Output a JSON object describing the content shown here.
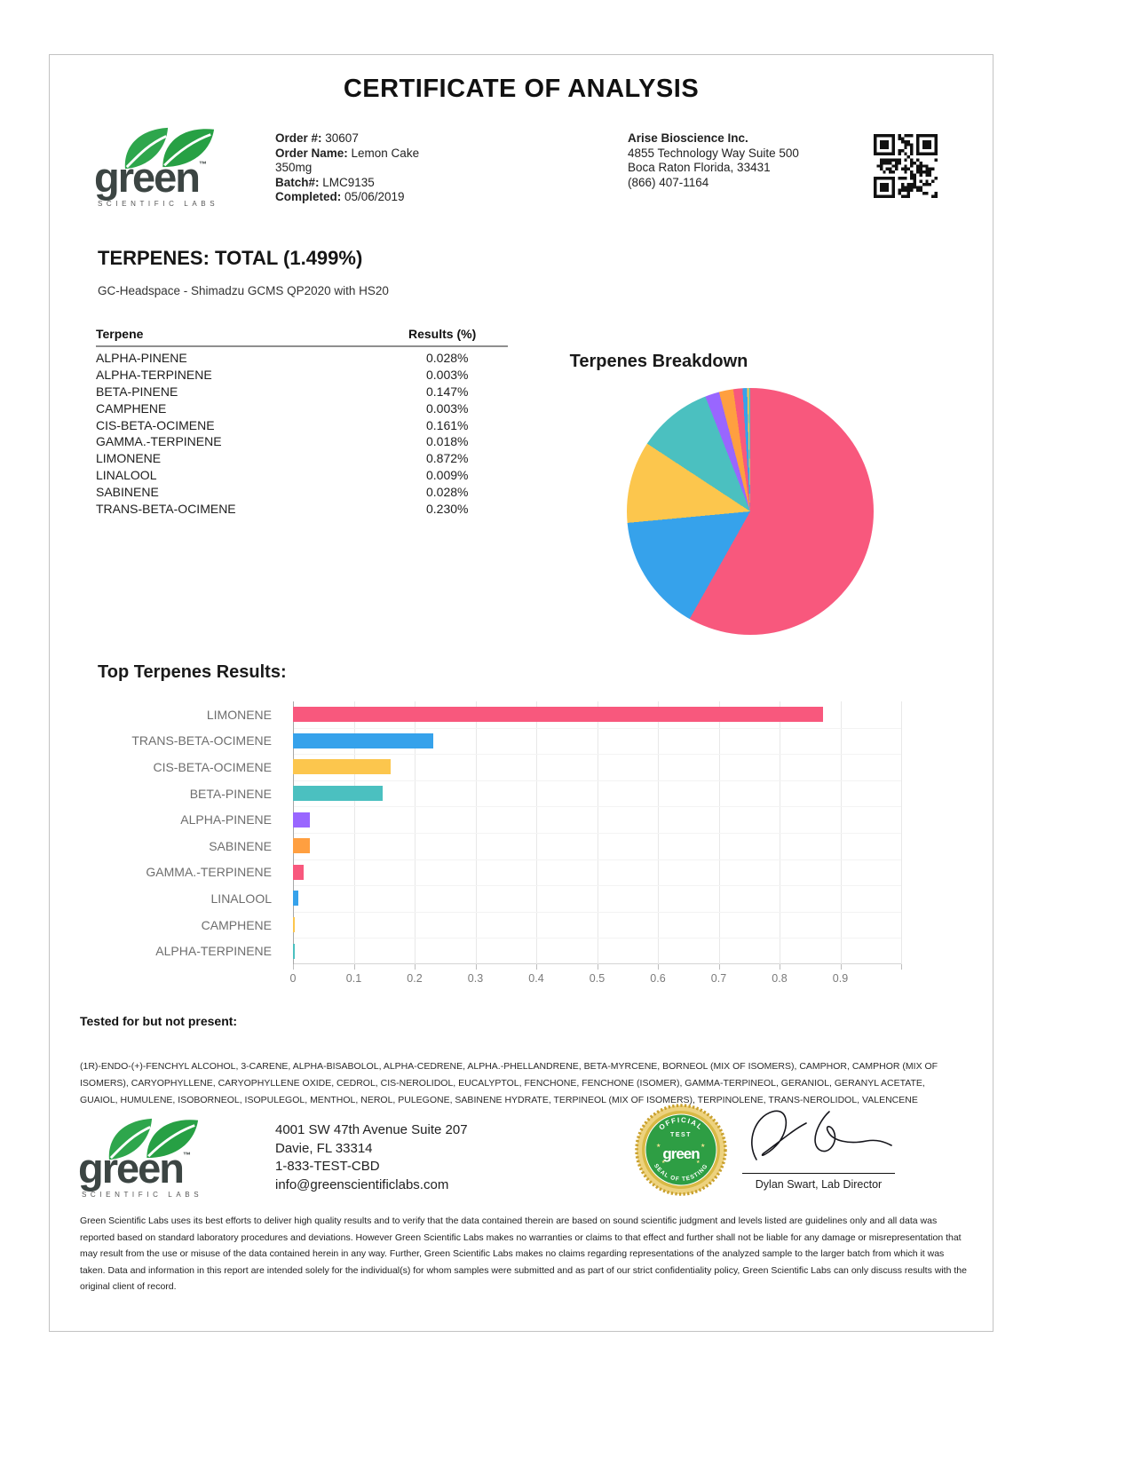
{
  "page": {
    "title": "CERTIFICATE OF ANALYSIS"
  },
  "brand": {
    "name": "green",
    "tm": "™",
    "tagline": "SCIENTIFIC LABS"
  },
  "order": {
    "lines": [
      {
        "label": "Order #:",
        "value": "30607"
      },
      {
        "label": "Order Name:",
        "value": "Lemon Cake 350mg"
      },
      {
        "label": "Batch#:",
        "value": "LMC9135"
      },
      {
        "label": "Completed:",
        "value": "05/06/2019"
      }
    ]
  },
  "client": {
    "name": "Arise Bioscience Inc.",
    "address1": "4855 Technology Way Suite 500",
    "address2": "Boca Raton Florida, 33431",
    "phone": "(866) 407-1164"
  },
  "terpenes_section": {
    "heading": "TERPENES: TOTAL (1.499%)",
    "method": "GC-Headspace - Shimadzu GCMS QP2020 with HS20"
  },
  "terpene_table": {
    "columns": [
      "Terpene",
      "Results (%)"
    ],
    "rows": [
      [
        "ALPHA-PINENE",
        "0.028%"
      ],
      [
        "ALPHA-TERPINENE",
        "0.003%"
      ],
      [
        "BETA-PINENE",
        "0.147%"
      ],
      [
        "CAMPHENE",
        "0.003%"
      ],
      [
        "CIS-BETA-OCIMENE",
        "0.161%"
      ],
      [
        "GAMMA.-TERPINENE",
        "0.018%"
      ],
      [
        "LIMONENE",
        "0.872%"
      ],
      [
        "LINALOOL",
        "0.009%"
      ],
      [
        "SABINENE",
        "0.028%"
      ],
      [
        "TRANS-BETA-OCIMENE",
        "0.230%"
      ]
    ]
  },
  "chart_data": [
    {
      "type": "pie",
      "title": "Terpenes Breakdown",
      "labels": [
        "LIMONENE",
        "TRANS-BETA-OCIMENE",
        "CIS-BETA-OCIMENE",
        "BETA-PINENE",
        "ALPHA-PINENE",
        "SABINENE",
        "GAMMA.-TERPINENE",
        "LINALOOL",
        "CAMPHENE",
        "ALPHA-TERPINENE"
      ],
      "values": [
        0.872,
        0.23,
        0.161,
        0.147,
        0.028,
        0.028,
        0.018,
        0.009,
        0.003,
        0.003
      ],
      "unit": "%",
      "total": 1.499,
      "colors": [
        "#F8587D",
        "#36A2EB",
        "#FCC64D",
        "#4BC0C0",
        "#9966FF",
        "#FF9F40",
        "#F8587D",
        "#36A2EB",
        "#FCC64D",
        "#4BC0C0"
      ],
      "start_angle_deg": 0,
      "direction": "clockwise",
      "legend": "none"
    },
    {
      "type": "bar",
      "title": "Top Terpenes Results:",
      "orientation": "horizontal",
      "categories": [
        "LIMONENE",
        "TRANS-BETA-OCIMENE",
        "CIS-BETA-OCIMENE",
        "BETA-PINENE",
        "ALPHA-PINENE",
        "SABINENE",
        "GAMMA.-TERPINENE",
        "LINALOOL",
        "CAMPHENE",
        "ALPHA-TERPINENE"
      ],
      "values": [
        0.872,
        0.23,
        0.161,
        0.147,
        0.028,
        0.028,
        0.018,
        0.009,
        0.003,
        0.003
      ],
      "colors": [
        "#F8587D",
        "#36A2EB",
        "#FCC64D",
        "#4BC0C0",
        "#9966FF",
        "#FF9F40",
        "#F8587D",
        "#36A2EB",
        "#FCC64D",
        "#4BC0C0"
      ],
      "unit": "%",
      "xlim": [
        0,
        1.0
      ],
      "x_ticks": [
        "0",
        "0.1",
        "0.2",
        "0.3",
        "0.4",
        "0.5",
        "0.6",
        "0.7",
        "0.8",
        "0.9"
      ],
      "grid": "vertical"
    }
  ],
  "tested_not_present": {
    "heading": "Tested for but not present:",
    "list": "(1R)-ENDO-(+)-FENCHYL ALCOHOL, 3-CARENE, ALPHA-BISABOLOL, ALPHA-CEDRENE, ALPHA.-PHELLANDRENE, BETA-MYRCENE, BORNEOL (MIX OF ISOMERS), CAMPHOR, CAMPHOR (MIX OF ISOMERS), CARYOPHYLLENE, CARYOPHYLLENE OXIDE, CEDROL, CIS-NEROLIDOL, EUCALYPTOL, FENCHONE, FENCHONE (ISOMER), GAMMA-TERPINEOL, GERANIOL, GERANYL ACETATE, GUAIOL, HUMULENE, ISOBORNEOL, ISOPULEGOL, MENTHOL, NEROL, PULEGONE, SABINENE HYDRATE, TERPINEOL (MIX OF ISOMERS), TERPINOLENE, TRANS-NEROLIDOL, VALENCENE"
  },
  "footer": {
    "address": [
      "4001 SW 47th Avenue Suite 207",
      "Davie, FL 33314",
      "1-833-TEST-CBD",
      "info@greenscientificlabs.com"
    ],
    "seal": {
      "arc_top": "OFFICIAL",
      "test_line": "TEST",
      "brand": "green",
      "arc_bottom": "SEAL OF TESTING"
    },
    "signature_name": "Dylan Swart, Lab Director",
    "disclaimer": "Green Scientific Labs uses its best efforts to deliver high quality results and to verify that the data contained therein are based on sound scientific judgment and levels listed are guidelines only and all data was reported based on standard laboratory procedures and deviations. However Green Scientific Labs makes no warranties or claims to that effect and further shall not be liable for any damage or misrepresentation that may result from the use or misuse of the data contained herein in any way. Further, Green Scientific Labs makes no claims regarding representations of the analyzed sample to the larger batch from which it was taken. Data and information in this report are intended solely for the individual(s) for whom samples were submitted and as part of our strict confidentiality policy, Green Scientific Labs can only discuss results with the original client of record."
  }
}
